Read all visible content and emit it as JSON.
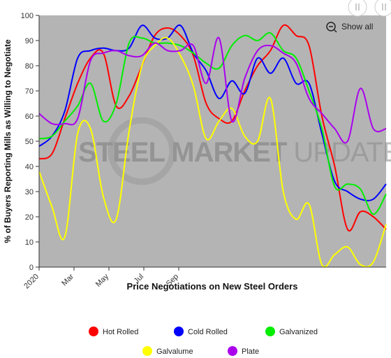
{
  "chart_data": {
    "type": "line",
    "title": "Price Negotiations on New Steel Orders",
    "ylabel": "% of Buyers Reporting Mills as Willing to Negotiate",
    "xlabel": "",
    "ylim": [
      0,
      100
    ],
    "y_ticks": [
      0,
      10,
      20,
      30,
      40,
      50,
      60,
      70,
      80,
      90,
      100
    ],
    "x_ticks": [
      "2020",
      "Mar",
      "May",
      "Jul",
      "Sep"
    ],
    "grid": false,
    "legend_position": "bottom",
    "watermark": "STEEL MARKET UPDATE",
    "show_all_label": "Show all",
    "background": "#b4b4b4",
    "series": [
      {
        "name": "Hot Rolled",
        "color": "#ff0000",
        "values": [
          43,
          45,
          59,
          73,
          83,
          85,
          64,
          68,
          80,
          92,
          95,
          92,
          84,
          65,
          59,
          58,
          70,
          80,
          86,
          96,
          92,
          88,
          60,
          40,
          15,
          22,
          20,
          15
        ]
      },
      {
        "name": "Cold Rolled",
        "color": "#0000ff",
        "values": [
          48,
          52,
          62,
          83,
          86,
          87,
          86,
          87,
          96,
          91,
          91,
          96,
          85,
          78,
          67,
          74,
          69,
          83,
          77,
          83,
          73,
          73,
          53,
          34,
          30,
          27,
          27,
          33
        ]
      },
      {
        "name": "Galvanized",
        "color": "#00ee00",
        "values": [
          51,
          52,
          58,
          64,
          73,
          58,
          65,
          89,
          91,
          89,
          89,
          88,
          85,
          81,
          79,
          88,
          92,
          90,
          93,
          86,
          83,
          70,
          55,
          32,
          33,
          31,
          21,
          29
        ]
      },
      {
        "name": "Galvalume",
        "color": "#ffff00",
        "values": [
          38,
          24,
          12,
          53,
          55,
          28,
          19,
          54,
          80,
          88,
          91,
          84,
          72,
          51,
          58,
          63,
          52,
          50,
          67,
          30,
          19,
          25,
          1,
          5,
          8,
          1,
          2,
          17
        ]
      },
      {
        "name": "Plate",
        "color": "#aa00ee",
        "values": [
          61,
          57,
          57,
          59,
          82,
          85,
          86,
          84,
          84,
          89,
          86,
          86,
          88,
          73,
          91,
          58,
          75,
          86,
          88,
          85,
          81,
          67,
          61,
          55,
          50,
          71,
          55,
          55
        ]
      }
    ]
  }
}
